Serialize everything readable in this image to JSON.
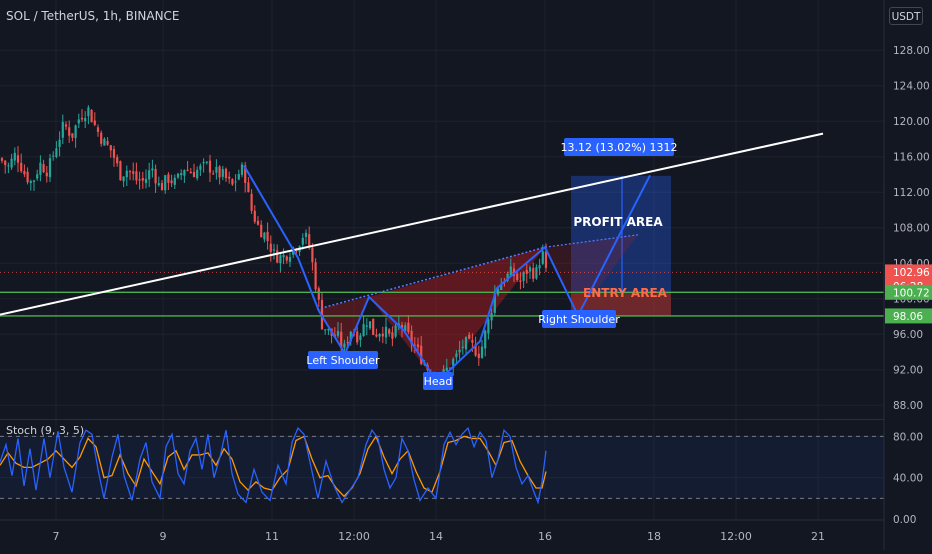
{
  "header": {
    "symbol_label": "SOL / TetherUS, 1h, BINANCE",
    "currency": "USDT"
  },
  "colors": {
    "background": "#131722",
    "grid": "#1e222d",
    "up": "#26a69a",
    "down": "#ef5350",
    "pattern": "#2962ff",
    "trendline": "#ffffff",
    "support": "#4caf50",
    "profit_zone": "#2962ff",
    "entry_zone": "#8b2f2f",
    "stoch_k": "#2962ff",
    "stoch_d": "#ff9800"
  },
  "price_axis": {
    "ticks": [
      "128.00",
      "124.00",
      "120.00",
      "116.00",
      "112.00",
      "108.00",
      "104.00",
      "100.00",
      "96.00",
      "92.00",
      "88.00"
    ]
  },
  "price_tags": [
    {
      "value": "102.96",
      "sub": "06:28",
      "color": "#ef5350",
      "y": 102.96
    },
    {
      "value": "100.72",
      "sub": "",
      "color": "#4caf50",
      "y": 100.72
    },
    {
      "value": "98.06",
      "sub": "",
      "color": "#4caf50",
      "y": 98.06
    }
  ],
  "time_axis": {
    "ticks": [
      "7",
      "9",
      "11",
      "12:00",
      "14",
      "16",
      "18",
      "12:00",
      "21"
    ]
  },
  "annotations": {
    "left_shoulder": "Left Shoulder",
    "head": "Head",
    "right_shoulder": "Right Shoulder",
    "profit_area": "PROFIT AREA",
    "entry_area": "ENTRY AREA",
    "measure": "13.12 (13.02%) 1312"
  },
  "stoch": {
    "label": "Stoch (9, 3, 5)",
    "ticks": [
      "80.00",
      "40.00",
      "0.00"
    ],
    "upper": 80,
    "lower": 20
  },
  "chart_data": {
    "type": "candlestick",
    "title": "SOL / TetherUS, 1h, BINANCE",
    "ylim": [
      86,
      131
    ],
    "x_labels": [
      "7",
      "9",
      "11",
      "12:00",
      "14",
      "16",
      "18",
      "12:00",
      "21"
    ],
    "anchors": [
      [
        0,
        115.8
      ],
      [
        8,
        114.8
      ],
      [
        16,
        116.4
      ],
      [
        24,
        114.2
      ],
      [
        32,
        113.0
      ],
      [
        40,
        115.2
      ],
      [
        48,
        114.4
      ],
      [
        56,
        117.2
      ],
      [
        64,
        119.6
      ],
      [
        72,
        118.4
      ],
      [
        80,
        120.6
      ],
      [
        88,
        121.4
      ],
      [
        96,
        119.2
      ],
      [
        104,
        117.6
      ],
      [
        112,
        116.6
      ],
      [
        120,
        114.0
      ],
      [
        128,
        114.6
      ],
      [
        136,
        113.4
      ],
      [
        144,
        113.2
      ],
      [
        152,
        114.8
      ],
      [
        160,
        112.4
      ],
      [
        168,
        113.6
      ],
      [
        176,
        113.0
      ],
      [
        184,
        114.8
      ],
      [
        192,
        114.2
      ],
      [
        200,
        114.6
      ],
      [
        208,
        115.0
      ],
      [
        216,
        114.2
      ],
      [
        224,
        113.8
      ],
      [
        232,
        112.6
      ],
      [
        240,
        114.4
      ],
      [
        244,
        114.6
      ],
      [
        250,
        110.4
      ],
      [
        258,
        108.2
      ],
      [
        266,
        107.0
      ],
      [
        274,
        105.0
      ],
      [
        282,
        104.6
      ],
      [
        290,
        105.4
      ],
      [
        298,
        106.2
      ],
      [
        304,
        107.4
      ],
      [
        310,
        105.6
      ],
      [
        316,
        101.4
      ],
      [
        322,
        97.2
      ],
      [
        330,
        96.0
      ],
      [
        338,
        95.6
      ],
      [
        344,
        94.2
      ],
      [
        350,
        96.6
      ],
      [
        358,
        95.8
      ],
      [
        368,
        97.8
      ],
      [
        374,
        96.0
      ],
      [
        382,
        96.6
      ],
      [
        392,
        95.4
      ],
      [
        400,
        97.2
      ],
      [
        408,
        95.8
      ],
      [
        416,
        94.4
      ],
      [
        424,
        92.8
      ],
      [
        432,
        91.4
      ],
      [
        440,
        91.0
      ],
      [
        448,
        92.2
      ],
      [
        456,
        93.4
      ],
      [
        464,
        95.0
      ],
      [
        472,
        94.6
      ],
      [
        480,
        93.8
      ],
      [
        488,
        97.2
      ],
      [
        496,
        101.2
      ],
      [
        504,
        102.2
      ],
      [
        512,
        103.0
      ],
      [
        520,
        101.8
      ],
      [
        528,
        103.4
      ],
      [
        536,
        102.8
      ],
      [
        542,
        105.4
      ],
      [
        546,
        102.9
      ]
    ],
    "pattern_points": {
      "left_peak": [
        244,
        115.0
      ],
      "left_shoulder_low": [
        345,
        93.8
      ],
      "neck_left": [
        369,
        100.2
      ],
      "head_low": [
        437,
        90.6
      ],
      "neck_right": [
        545,
        105.8
      ],
      "right_shoulder_low": [
        578,
        98.1
      ],
      "target": [
        650,
        113.9
      ]
    },
    "trendline": {
      "from": [
        0,
        98.2
      ],
      "to": [
        823,
        118.6
      ]
    },
    "support_lines": [
      100.72,
      98.06
    ],
    "current_price": 102.96,
    "profit_zone": {
      "x": [
        571,
        671
      ],
      "y": [
        100.72,
        113.84
      ]
    },
    "entry_zone": {
      "x": [
        571,
        671
      ],
      "y": [
        98.06,
        100.72
      ]
    },
    "measure": {
      "delta": 13.12,
      "percent": 13.02,
      "ticks": 1312
    },
    "stoch_k": [
      [
        0,
        55
      ],
      [
        6,
        72
      ],
      [
        12,
        42
      ],
      [
        18,
        78
      ],
      [
        24,
        32
      ],
      [
        30,
        68
      ],
      [
        36,
        28
      ],
      [
        44,
        78
      ],
      [
        50,
        40
      ],
      [
        58,
        85
      ],
      [
        64,
        50
      ],
      [
        72,
        26
      ],
      [
        80,
        74
      ],
      [
        86,
        86
      ],
      [
        92,
        82
      ],
      [
        98,
        48
      ],
      [
        104,
        20
      ],
      [
        112,
        60
      ],
      [
        118,
        82
      ],
      [
        124,
        42
      ],
      [
        132,
        18
      ],
      [
        140,
        58
      ],
      [
        146,
        74
      ],
      [
        152,
        36
      ],
      [
        160,
        20
      ],
      [
        166,
        70
      ],
      [
        172,
        82
      ],
      [
        178,
        44
      ],
      [
        184,
        34
      ],
      [
        190,
        66
      ],
      [
        196,
        78
      ],
      [
        202,
        48
      ],
      [
        208,
        82
      ],
      [
        214,
        40
      ],
      [
        220,
        60
      ],
      [
        226,
        86
      ],
      [
        232,
        44
      ],
      [
        238,
        24
      ],
      [
        246,
        16
      ],
      [
        254,
        48
      ],
      [
        262,
        26
      ],
      [
        270,
        18
      ],
      [
        278,
        52
      ],
      [
        286,
        34
      ],
      [
        292,
        74
      ],
      [
        298,
        88
      ],
      [
        304,
        82
      ],
      [
        312,
        46
      ],
      [
        318,
        20
      ],
      [
        326,
        56
      ],
      [
        334,
        32
      ],
      [
        342,
        16
      ],
      [
        350,
        28
      ],
      [
        358,
        40
      ],
      [
        366,
        72
      ],
      [
        372,
        86
      ],
      [
        378,
        78
      ],
      [
        384,
        48
      ],
      [
        390,
        30
      ],
      [
        396,
        40
      ],
      [
        402,
        78
      ],
      [
        408,
        66
      ],
      [
        414,
        38
      ],
      [
        420,
        18
      ],
      [
        428,
        30
      ],
      [
        436,
        20
      ],
      [
        444,
        72
      ],
      [
        450,
        84
      ],
      [
        456,
        72
      ],
      [
        462,
        82
      ],
      [
        468,
        88
      ],
      [
        474,
        70
      ],
      [
        480,
        84
      ],
      [
        486,
        76
      ],
      [
        492,
        40
      ],
      [
        498,
        58
      ],
      [
        504,
        86
      ],
      [
        510,
        80
      ],
      [
        516,
        50
      ],
      [
        522,
        34
      ],
      [
        528,
        42
      ],
      [
        534,
        26
      ],
      [
        538,
        16
      ],
      [
        542,
        36
      ],
      [
        546,
        66
      ]
    ],
    "stoch_d": [
      [
        0,
        52
      ],
      [
        8,
        64
      ],
      [
        16,
        54
      ],
      [
        24,
        50
      ],
      [
        32,
        50
      ],
      [
        40,
        54
      ],
      [
        48,
        58
      ],
      [
        56,
        66
      ],
      [
        64,
        58
      ],
      [
        72,
        50
      ],
      [
        80,
        60
      ],
      [
        88,
        78
      ],
      [
        96,
        70
      ],
      [
        104,
        40
      ],
      [
        112,
        42
      ],
      [
        120,
        62
      ],
      [
        128,
        44
      ],
      [
        136,
        32
      ],
      [
        144,
        58
      ],
      [
        152,
        46
      ],
      [
        160,
        34
      ],
      [
        168,
        60
      ],
      [
        176,
        66
      ],
      [
        184,
        48
      ],
      [
        192,
        62
      ],
      [
        200,
        62
      ],
      [
        208,
        64
      ],
      [
        216,
        52
      ],
      [
        224,
        68
      ],
      [
        232,
        58
      ],
      [
        240,
        36
      ],
      [
        248,
        28
      ],
      [
        256,
        36
      ],
      [
        264,
        30
      ],
      [
        272,
        28
      ],
      [
        280,
        40
      ],
      [
        288,
        48
      ],
      [
        296,
        76
      ],
      [
        304,
        80
      ],
      [
        312,
        58
      ],
      [
        320,
        40
      ],
      [
        328,
        42
      ],
      [
        336,
        30
      ],
      [
        344,
        22
      ],
      [
        352,
        30
      ],
      [
        360,
        44
      ],
      [
        368,
        68
      ],
      [
        376,
        80
      ],
      [
        384,
        60
      ],
      [
        392,
        44
      ],
      [
        400,
        58
      ],
      [
        408,
        66
      ],
      [
        416,
        46
      ],
      [
        424,
        30
      ],
      [
        432,
        26
      ],
      [
        440,
        46
      ],
      [
        448,
        74
      ],
      [
        456,
        76
      ],
      [
        464,
        80
      ],
      [
        472,
        78
      ],
      [
        480,
        78
      ],
      [
        488,
        66
      ],
      [
        496,
        52
      ],
      [
        504,
        74
      ],
      [
        512,
        76
      ],
      [
        520,
        56
      ],
      [
        528,
        42
      ],
      [
        536,
        30
      ],
      [
        542,
        30
      ],
      [
        546,
        46
      ]
    ]
  }
}
